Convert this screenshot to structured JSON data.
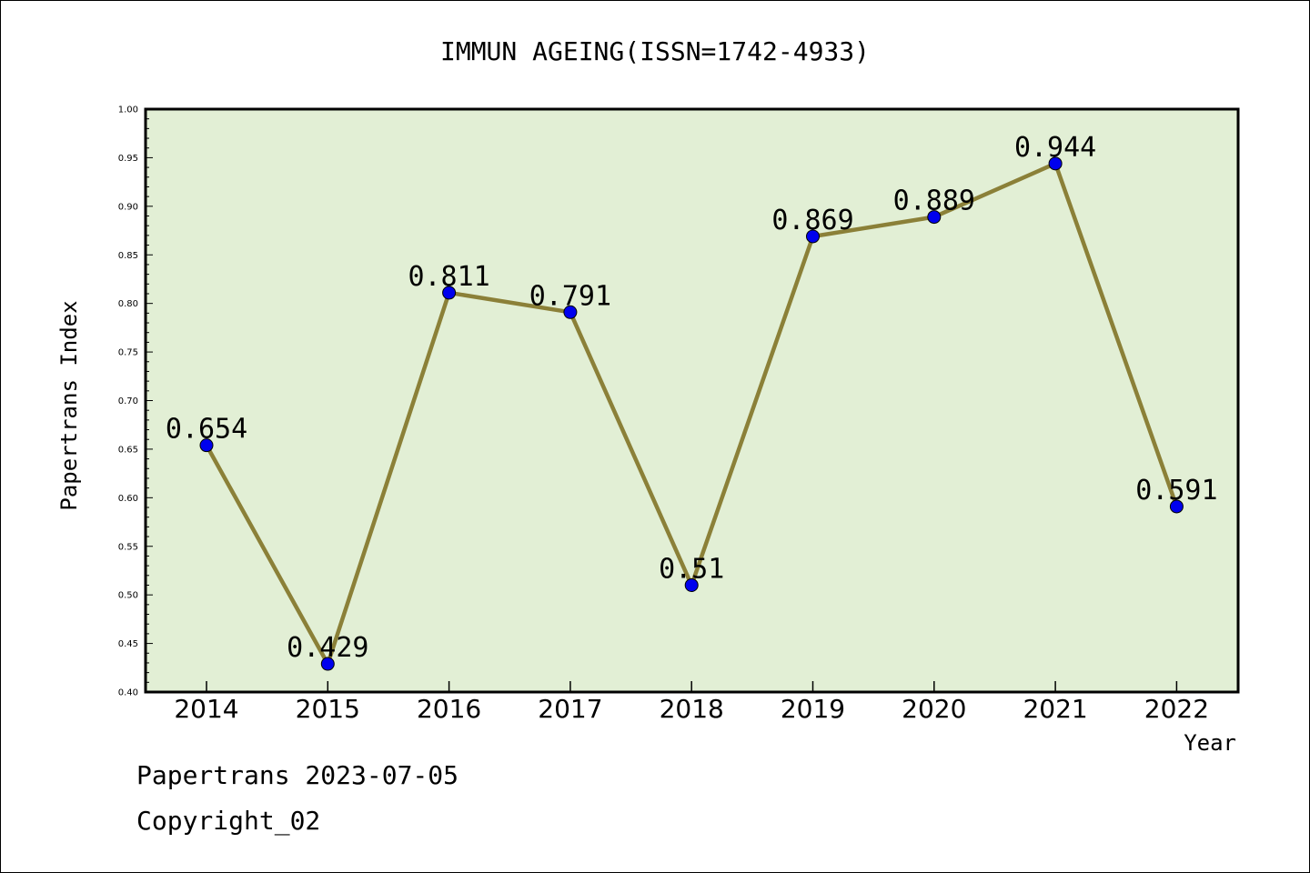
{
  "chart_data": {
    "type": "line",
    "title": "IMMUN AGEING(ISSN=1742-4933)",
    "xlabel": "Year",
    "ylabel": "Papertrans Index",
    "categories": [
      "2014",
      "2015",
      "2016",
      "2017",
      "2018",
      "2019",
      "2020",
      "2021",
      "2022"
    ],
    "series": [
      {
        "values": [
          0.654,
          0.429,
          0.811,
          0.791,
          0.51,
          0.869,
          0.889,
          0.944,
          0.591
        ],
        "labels": [
          "0.654",
          "0.429",
          "0.811",
          "0.791",
          "0.51",
          "0.869",
          "0.889",
          "0.944",
          "0.591"
        ]
      }
    ],
    "ylim": [
      0.4,
      1.0
    ],
    "yticks": [
      "0.40",
      "0.45",
      "0.50",
      "0.55",
      "0.60",
      "0.65",
      "0.70",
      "0.75",
      "0.80",
      "0.85",
      "0.90",
      "0.95",
      "1.00"
    ],
    "grid": false,
    "colors": {
      "plot_background": "#e2efd5",
      "line": "#8b8038",
      "marker": "#0000ee"
    }
  },
  "footer": {
    "date_line": "Papertrans 2023-07-05",
    "copyright": "Copyright_02"
  }
}
